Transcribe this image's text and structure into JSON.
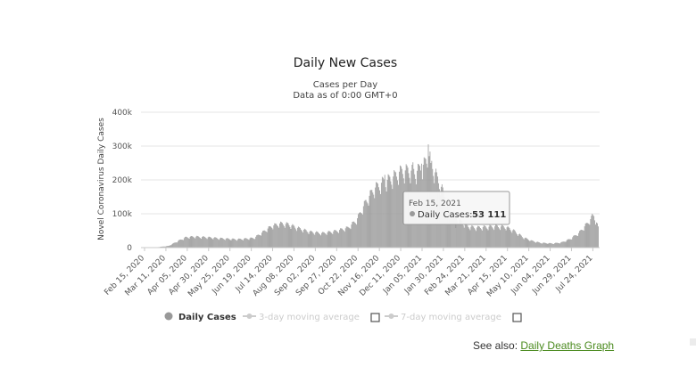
{
  "chart_data": {
    "type": "bar",
    "title": "Daily New Cases",
    "subtitle_line1": "Cases per Day",
    "subtitle_line2": "Data as of 0:00 GMT+0",
    "ylabel": "Novel Coronavirus Daily Cases",
    "ylim": [
      0,
      400000
    ],
    "yticks": [
      {
        "value": 0,
        "label": "0"
      },
      {
        "value": 100000,
        "label": "100k"
      },
      {
        "value": 200000,
        "label": "200k"
      },
      {
        "value": 300000,
        "label": "300k"
      },
      {
        "value": 400000,
        "label": "400k"
      }
    ],
    "xticks": [
      "Feb 15, 2020",
      "Mar 11, 2020",
      "Apr 05, 2020",
      "Apr 30, 2020",
      "May 25, 2020",
      "Jun 19, 2020",
      "Jul 14, 2020",
      "Aug 08, 2020",
      "Sep 02, 2020",
      "Sep 27, 2020",
      "Oct 22, 2020",
      "Nov 16, 2020",
      "Dec 11, 2020",
      "Jan 05, 2021",
      "Jan 30, 2021",
      "Feb 24, 2021",
      "Mar 21, 2021",
      "Apr 15, 2021",
      "May 10, 2021",
      "Jun 04, 2021",
      "Jun 29, 2021",
      "Jul 24, 2021"
    ],
    "period_days": 25,
    "series_name": "Daily Cases",
    "series_color": "#9a9a9a",
    "weekly_cycle": [
      1.1,
      1.08,
      1.05,
      0.98,
      0.92,
      0.85,
      1.02
    ],
    "trend_knots": [
      {
        "day": 0,
        "value": 200
      },
      {
        "day": 15,
        "value": 800
      },
      {
        "day": 30,
        "value": 5000
      },
      {
        "day": 40,
        "value": 18000
      },
      {
        "day": 50,
        "value": 30000
      },
      {
        "day": 60,
        "value": 32000
      },
      {
        "day": 75,
        "value": 30000
      },
      {
        "day": 90,
        "value": 27000
      },
      {
        "day": 110,
        "value": 24000
      },
      {
        "day": 130,
        "value": 28000
      },
      {
        "day": 140,
        "value": 45000
      },
      {
        "day": 150,
        "value": 62000
      },
      {
        "day": 160,
        "value": 70000
      },
      {
        "day": 170,
        "value": 68000
      },
      {
        "day": 180,
        "value": 58000
      },
      {
        "day": 195,
        "value": 46000
      },
      {
        "day": 210,
        "value": 42000
      },
      {
        "day": 225,
        "value": 48000
      },
      {
        "day": 240,
        "value": 58000
      },
      {
        "day": 250,
        "value": 80000
      },
      {
        "day": 260,
        "value": 130000
      },
      {
        "day": 270,
        "value": 170000
      },
      {
        "day": 280,
        "value": 190000
      },
      {
        "day": 290,
        "value": 200000
      },
      {
        "day": 300,
        "value": 220000
      },
      {
        "day": 310,
        "value": 225000
      },
      {
        "day": 320,
        "value": 220000
      },
      {
        "day": 330,
        "value": 245000
      },
      {
        "day": 335,
        "value": 265000
      },
      {
        "day": 340,
        "value": 230000
      },
      {
        "day": 350,
        "value": 170000
      },
      {
        "day": 360,
        "value": 115000
      },
      {
        "day": 370,
        "value": 80000
      },
      {
        "day": 380,
        "value": 62000
      },
      {
        "day": 390,
        "value": 58000
      },
      {
        "day": 400,
        "value": 60000
      },
      {
        "day": 415,
        "value": 62000
      },
      {
        "day": 425,
        "value": 60000
      },
      {
        "day": 435,
        "value": 48000
      },
      {
        "day": 445,
        "value": 30000
      },
      {
        "day": 455,
        "value": 20000
      },
      {
        "day": 465,
        "value": 14000
      },
      {
        "day": 480,
        "value": 12000
      },
      {
        "day": 490,
        "value": 15000
      },
      {
        "day": 500,
        "value": 25000
      },
      {
        "day": 510,
        "value": 42000
      },
      {
        "day": 520,
        "value": 70000
      },
      {
        "day": 528,
        "value": 95000
      },
      {
        "day": 533,
        "value": 58000
      }
    ],
    "spikes": [
      {
        "day": 334,
        "value": 305000
      },
      {
        "day": 331,
        "value": 262000
      },
      {
        "day": 337,
        "value": 250000
      },
      {
        "day": 326,
        "value": 248000
      },
      {
        "day": 316,
        "value": 252000
      },
      {
        "day": 302,
        "value": 240000
      },
      {
        "day": 295,
        "value": 225000
      },
      {
        "day": 283,
        "value": 215000
      },
      {
        "day": 526,
        "value": 100000
      }
    ],
    "tooltip": {
      "day": 366,
      "date": "Feb 15, 2021",
      "label": "Daily Cases:",
      "value": "53 111"
    }
  },
  "legend": {
    "daily_cases": "Daily Cases",
    "ma3": "3-day moving average",
    "ma7": "7-day moving average",
    "active_color": "#999999",
    "inactive_color": "#cccccc"
  },
  "see_also": {
    "prefix": "See also:",
    "link": "Daily Deaths Graph"
  }
}
